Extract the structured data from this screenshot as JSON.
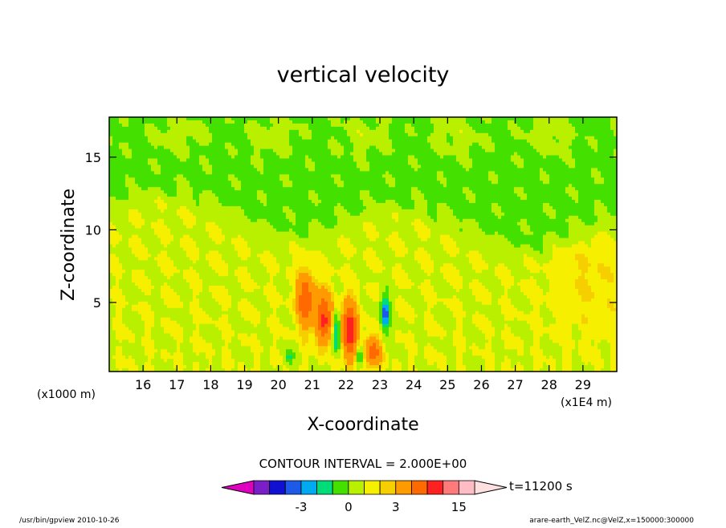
{
  "chart_data": {
    "type": "contour",
    "title": "vertical velocity",
    "xlabel": "X-coordinate",
    "ylabel": "Z-coordinate",
    "x_unit_label": "(x1E4 m)",
    "y_unit_label": "(x1000 m)",
    "x_ticks": [
      16,
      17,
      18,
      19,
      20,
      21,
      22,
      23,
      24,
      25,
      26,
      27,
      28,
      29
    ],
    "y_ticks": [
      5,
      10,
      15
    ],
    "xlim": [
      15.0,
      30.0
    ],
    "ylim": [
      0.25,
      17.75
    ],
    "contour_interval_text": "CONTOUR INTERVAL = 2.000E+00",
    "time_text": "t=11200 s",
    "colorbar": {
      "levels": [
        -6,
        -5,
        -4,
        -3,
        -2,
        -1,
        0,
        1,
        2,
        3,
        6,
        9,
        12,
        15,
        18
      ],
      "colors": [
        "#e000c0",
        "#7a1fc8",
        "#1010d0",
        "#1e5ae8",
        "#00aaf0",
        "#00dc78",
        "#44e000",
        "#b8f000",
        "#f6f000",
        "#f5cf00",
        "#ff9a00",
        "#ff6a00",
        "#ff2020",
        "#ff7a7a",
        "#ffbcc4",
        "#ffe0e0"
      ],
      "tick_labels": [
        {
          "value": -3,
          "text": "-3"
        },
        {
          "value": 0,
          "text": "0"
        },
        {
          "value": 3,
          "text": "3"
        },
        {
          "value": 15,
          "text": "15"
        }
      ]
    },
    "features": [
      {
        "kind": "updraft",
        "x": 20.8,
        "z": 5.2,
        "sx": 0.25,
        "sz": 1.8,
        "peak": 7.5
      },
      {
        "kind": "updraft",
        "x": 21.35,
        "z": 3.9,
        "sx": 0.25,
        "sz": 1.7,
        "peak": 8.5
      },
      {
        "kind": "updraft",
        "x": 22.1,
        "z": 3.1,
        "sx": 0.22,
        "sz": 1.8,
        "peak": 10.5
      },
      {
        "kind": "updraft",
        "x": 22.8,
        "z": 1.6,
        "sx": 0.2,
        "sz": 1.0,
        "peak": 7.5
      },
      {
        "kind": "downdraft",
        "x": 21.7,
        "z": 2.9,
        "sx": 0.14,
        "sz": 1.4,
        "peak": -4.5
      },
      {
        "kind": "downdraft",
        "x": 23.15,
        "z": 4.2,
        "sx": 0.14,
        "sz": 1.3,
        "peak": -4.5
      },
      {
        "kind": "downdraft",
        "x": 20.3,
        "z": 1.2,
        "sx": 0.12,
        "sz": 0.6,
        "peak": -2.5
      },
      {
        "kind": "downdraft",
        "x": 22.4,
        "z": 1.5,
        "sx": 0.1,
        "sz": 0.8,
        "peak": -2.5
      }
    ]
  },
  "footer": {
    "left": "/usr/bin/gpview   2010-10-26",
    "right": "arare-earth_VelZ.nc@VelZ,x=150000:300000"
  }
}
